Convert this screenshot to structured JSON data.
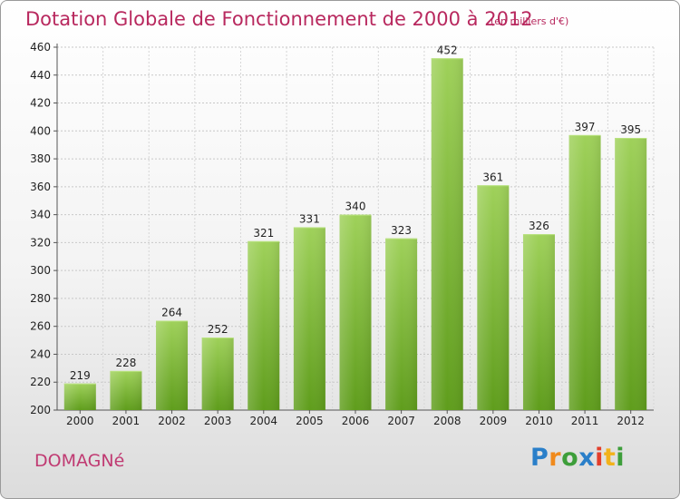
{
  "header": {
    "title": "Dotation Globale de Fonctionnement de 2000 à 2012",
    "subtitle": "(en milliers d'€)"
  },
  "footer": {
    "commune": "DOMAGNé",
    "logo_letters": [
      "P",
      "r",
      "o",
      "x",
      "i",
      "t",
      "i"
    ]
  },
  "colors": {
    "title": "#b8285e",
    "bar_top": "#9fd15a",
    "bar_bottom": "#5f9d1c"
  },
  "chart_data": {
    "type": "bar",
    "title": "Dotation Globale de Fonctionnement de 2000 à 2012",
    "subtitle": "(en milliers d'€)",
    "categories": [
      "2000",
      "2001",
      "2002",
      "2003",
      "2004",
      "2005",
      "2006",
      "2007",
      "2008",
      "2009",
      "2010",
      "2011",
      "2012"
    ],
    "values": [
      219,
      228,
      264,
      252,
      321,
      331,
      340,
      323,
      452,
      361,
      326,
      397,
      395
    ],
    "ylim": [
      200,
      460
    ],
    "yticks": [
      200,
      220,
      240,
      260,
      280,
      300,
      320,
      340,
      360,
      380,
      400,
      420,
      440,
      460
    ],
    "grid": true,
    "legend": "none"
  }
}
